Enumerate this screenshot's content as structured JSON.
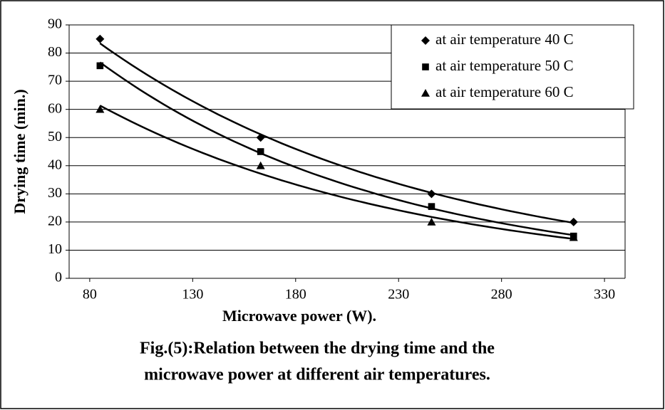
{
  "chart_data": {
    "type": "scatter",
    "x_label": "Microwave power (W).",
    "y_label": "Drying time (min.)",
    "caption": [
      "Fig.(5):Relation between the drying time and the",
      "microwave power at different air temperatures."
    ],
    "x": [
      85,
      163,
      246,
      315
    ],
    "series": [
      {
        "name": "at air temperature 40 C",
        "color": "#000000",
        "marker": "diamond",
        "values": [
          85,
          50,
          30,
          20
        ]
      },
      {
        "name": "at air temperature 50 C",
        "color": "#000000",
        "marker": "square",
        "values": [
          75.5,
          45,
          25.5,
          15
        ]
      },
      {
        "name": "at air temperature 60 C",
        "color": "#000000",
        "marker": "triangle",
        "values": [
          60,
          40,
          20,
          14.5
        ]
      }
    ],
    "trendline": "exponential",
    "xlim": [
      70,
      340
    ],
    "xticks": [
      80,
      130,
      180,
      230,
      280,
      330
    ],
    "ylim": [
      0,
      90
    ],
    "yticks": [
      0,
      10,
      20,
      30,
      40,
      50,
      60,
      70,
      80,
      90
    ],
    "grid": true,
    "legend": "top-right"
  }
}
